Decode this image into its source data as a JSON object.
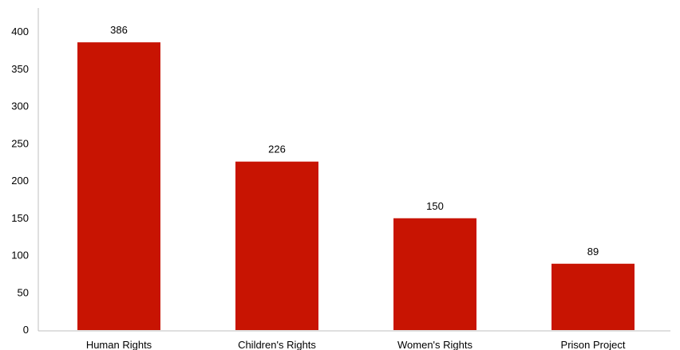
{
  "chart_data": {
    "type": "bar",
    "categories": [
      "Human Rights",
      "Children's Rights",
      "Women's Rights",
      "Prison Project"
    ],
    "values": [
      386,
      226,
      150,
      89
    ],
    "data_labels": [
      "386",
      "226",
      "150",
      "89"
    ],
    "yticks": [
      "0",
      "50",
      "100",
      "150",
      "200",
      "250",
      "300",
      "350",
      "400"
    ],
    "ylim": [
      0,
      400
    ],
    "grid": false,
    "legend": "none",
    "bar_color": "#c81402",
    "axis_color": "#bfbfbf"
  }
}
